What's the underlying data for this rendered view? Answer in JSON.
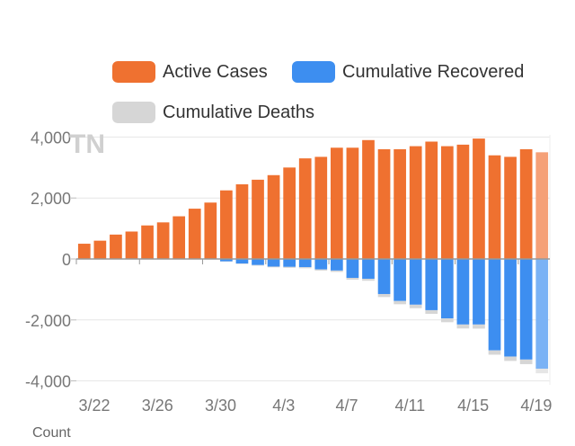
{
  "legend": {
    "active": {
      "label": "Active Cases",
      "color": "#ef7130"
    },
    "recovered": {
      "label": "Cumulative Recovered",
      "color": "#3d8ef0"
    },
    "deaths": {
      "label": "Cumulative Deaths",
      "color": "#d6d6d6"
    }
  },
  "footer": {
    "count_label": "Count"
  },
  "chart_data": {
    "type": "bar",
    "title": "TN",
    "xlabel": "",
    "ylabel": "",
    "ylim": [
      -4300,
      4300
    ],
    "yticks": [
      4000,
      2000,
      0,
      -2000,
      -4000
    ],
    "ytick_labels": [
      "4,000",
      "2,000",
      "0",
      "-2,000",
      "-4,000"
    ],
    "xtick_labels": [
      "3/22",
      "3/26",
      "3/30",
      "4/3",
      "4/7",
      "4/11",
      "4/15",
      "4/19"
    ],
    "xtick_indices": [
      0,
      4,
      8,
      12,
      16,
      20,
      24,
      28
    ],
    "categories": [
      "3/22",
      "3/23",
      "3/24",
      "3/25",
      "3/26",
      "3/27",
      "3/28",
      "3/29",
      "3/30",
      "3/31",
      "4/1",
      "4/2",
      "4/3",
      "4/4",
      "4/5",
      "4/6",
      "4/7",
      "4/8",
      "4/9",
      "4/10",
      "4/11",
      "4/12",
      "4/13",
      "4/14",
      "4/15",
      "4/16",
      "4/17",
      "4/18",
      "4/19",
      "4/20"
    ],
    "highlight_last": true,
    "series": [
      {
        "name": "Active Cases",
        "color": "#ef7130",
        "values": [
          500,
          600,
          800,
          900,
          1100,
          1200,
          1400,
          1650,
          1850,
          2250,
          2450,
          2600,
          2750,
          3000,
          3300,
          3350,
          3650,
          3650,
          3900,
          3600,
          3600,
          3700,
          3850,
          3700,
          3750,
          3950,
          3400,
          3350,
          3600,
          3500
        ]
      },
      {
        "name": "Cumulative Recovered",
        "color": "#3d8ef0",
        "values": [
          0,
          0,
          0,
          0,
          0,
          0,
          0,
          0,
          0,
          -80,
          -150,
          -200,
          -250,
          -260,
          -270,
          -340,
          -380,
          -620,
          -650,
          -1150,
          -1380,
          -1500,
          -1680,
          -1950,
          -2150,
          -2150,
          -3000,
          -3200,
          -3300,
          -3600
        ]
      },
      {
        "name": "Cumulative Deaths",
        "color": "#d6d6d6",
        "values": [
          0,
          0,
          0,
          0,
          0,
          0,
          0,
          0,
          0,
          -10,
          -15,
          -20,
          -25,
          -30,
          -35,
          -40,
          -45,
          -60,
          -65,
          -100,
          -105,
          -115,
          -120,
          -125,
          -130,
          -135,
          -140,
          -145,
          -150,
          -150
        ]
      }
    ]
  }
}
